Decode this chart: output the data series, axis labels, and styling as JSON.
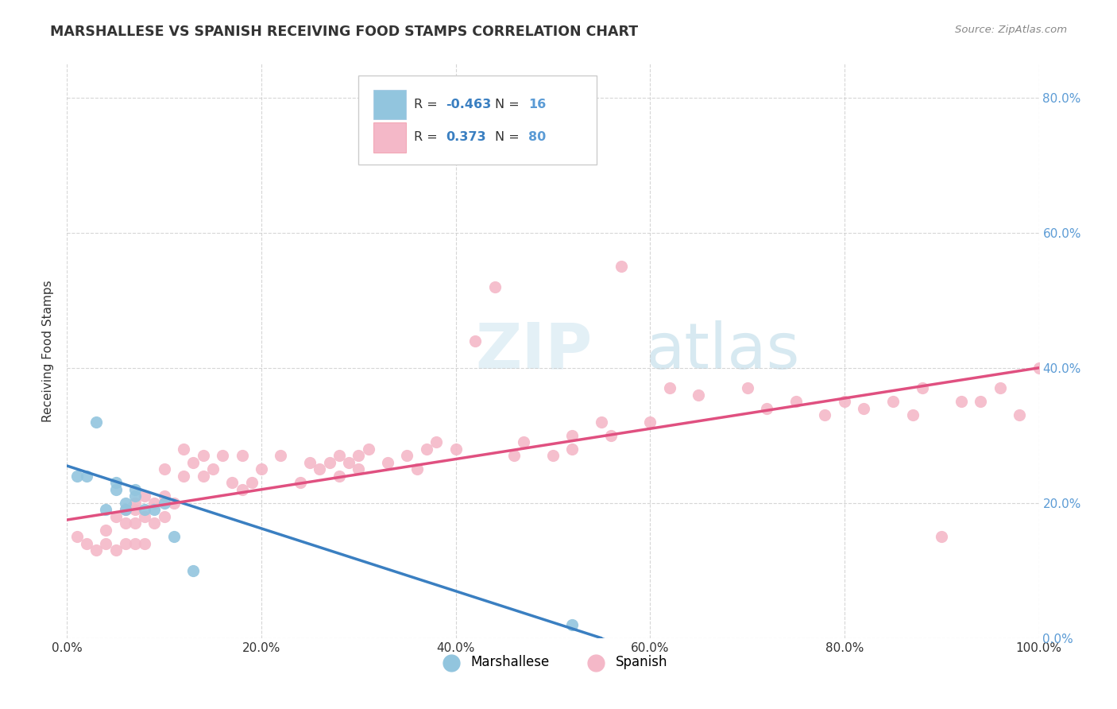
{
  "title": "MARSHALLESE VS SPANISH RECEIVING FOOD STAMPS CORRELATION CHART",
  "source_text": "Source: ZipAtlas.com",
  "ylabel": "Receiving Food Stamps",
  "xlim": [
    0.0,
    1.0
  ],
  "ylim": [
    0.0,
    0.85
  ],
  "x_ticks": [
    0.0,
    0.2,
    0.4,
    0.6,
    0.8,
    1.0
  ],
  "x_tick_labels": [
    "0.0%",
    "20.0%",
    "40.0%",
    "60.0%",
    "80.0%",
    "100.0%"
  ],
  "y_ticks": [
    0.0,
    0.2,
    0.4,
    0.6,
    0.8
  ],
  "y_tick_labels": [
    "0.0%",
    "20.0%",
    "40.0%",
    "60.0%",
    "80.0%"
  ],
  "marshallese_color": "#92c5de",
  "spanish_color": "#f4b8c8",
  "trend_blue": "#3a7fc1",
  "trend_pink": "#e05080",
  "watermark_color": "#d6eaf8",
  "background_color": "#ffffff",
  "grid_color": "#cccccc",
  "title_color": "#333333",
  "label_color": "#333333",
  "right_tick_color": "#5b9bd5",
  "legend_text_r_color": "#333333",
  "legend_text_n_color": "#5b9bd5",
  "marshallese_x": [
    0.01,
    0.02,
    0.03,
    0.04,
    0.05,
    0.05,
    0.06,
    0.06,
    0.07,
    0.07,
    0.08,
    0.09,
    0.1,
    0.11,
    0.13,
    0.52
  ],
  "marshallese_y": [
    0.24,
    0.24,
    0.32,
    0.19,
    0.22,
    0.23,
    0.19,
    0.2,
    0.21,
    0.22,
    0.19,
    0.19,
    0.2,
    0.15,
    0.1,
    0.02
  ],
  "spanish_x": [
    0.01,
    0.02,
    0.03,
    0.04,
    0.04,
    0.05,
    0.05,
    0.06,
    0.06,
    0.06,
    0.07,
    0.07,
    0.07,
    0.07,
    0.08,
    0.08,
    0.08,
    0.09,
    0.09,
    0.1,
    0.1,
    0.1,
    0.11,
    0.12,
    0.12,
    0.13,
    0.14,
    0.14,
    0.15,
    0.16,
    0.17,
    0.18,
    0.18,
    0.19,
    0.2,
    0.22,
    0.24,
    0.25,
    0.26,
    0.27,
    0.28,
    0.28,
    0.29,
    0.3,
    0.3,
    0.31,
    0.33,
    0.35,
    0.36,
    0.37,
    0.38,
    0.4,
    0.42,
    0.44,
    0.46,
    0.47,
    0.5,
    0.52,
    0.52,
    0.55,
    0.56,
    0.57,
    0.6,
    0.62,
    0.65,
    0.7,
    0.72,
    0.75,
    0.78,
    0.8,
    0.82,
    0.85,
    0.87,
    0.88,
    0.9,
    0.92,
    0.94,
    0.96,
    0.98,
    1.0
  ],
  "spanish_y": [
    0.15,
    0.14,
    0.13,
    0.14,
    0.16,
    0.13,
    0.18,
    0.14,
    0.17,
    0.19,
    0.14,
    0.17,
    0.19,
    0.2,
    0.14,
    0.18,
    0.21,
    0.17,
    0.2,
    0.18,
    0.21,
    0.25,
    0.2,
    0.24,
    0.28,
    0.26,
    0.24,
    0.27,
    0.25,
    0.27,
    0.23,
    0.22,
    0.27,
    0.23,
    0.25,
    0.27,
    0.23,
    0.26,
    0.25,
    0.26,
    0.27,
    0.24,
    0.26,
    0.25,
    0.27,
    0.28,
    0.26,
    0.27,
    0.25,
    0.28,
    0.29,
    0.28,
    0.44,
    0.52,
    0.27,
    0.29,
    0.27,
    0.28,
    0.3,
    0.32,
    0.3,
    0.55,
    0.32,
    0.37,
    0.36,
    0.37,
    0.34,
    0.35,
    0.33,
    0.35,
    0.34,
    0.35,
    0.33,
    0.37,
    0.15,
    0.35,
    0.35,
    0.37,
    0.33,
    0.4
  ],
  "marsh_trend_x0": 0.0,
  "marsh_trend_y0": 0.255,
  "marsh_trend_x1": 0.55,
  "marsh_trend_y1": 0.0,
  "span_trend_x0": 0.0,
  "span_trend_y0": 0.175,
  "span_trend_x1": 1.0,
  "span_trend_y1": 0.4
}
